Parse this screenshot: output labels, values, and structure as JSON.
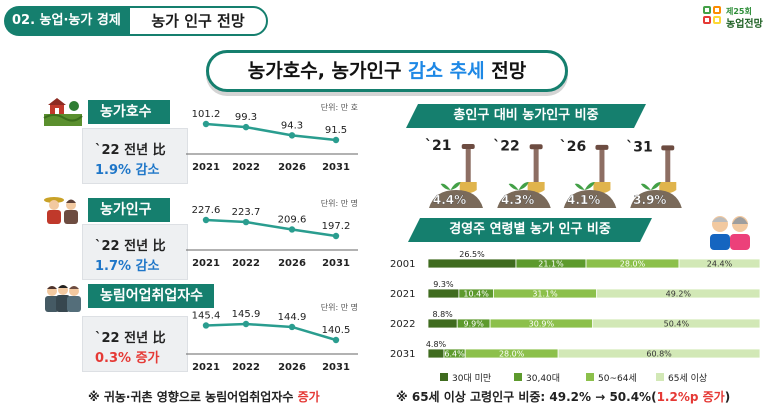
{
  "header": {
    "section_tag": "02. 농업·농가 경제 전망",
    "section_title": "농가 인구 전망",
    "logo_line1": "제25회",
    "logo_line2": "농업전망"
  },
  "main_title": {
    "part1": "농가호수, 농가인구 ",
    "highlight": "감소 추세",
    "part2": " 전망"
  },
  "left": {
    "households": {
      "label": "농가호수",
      "comp_line": "`22 전년 比",
      "change": "1.9% 감소",
      "unit": "단위: 만 호"
    },
    "population": {
      "label": "농가인구",
      "comp_line": "`22 전년 比",
      "change": "1.7% 감소",
      "unit": "단위: 만 명"
    },
    "workers": {
      "label": "농림어업취업자수",
      "comp_line": "`22 전년 比",
      "change": "0.3% 증가",
      "unit": "단위: 만 명"
    },
    "footnote_prefix": "※ 귀농·귀촌 영향으로 농림어업취업자수 ",
    "footnote_highlight": "증가"
  },
  "right": {
    "share_title": "총인구 대비 농가인구 비중",
    "age_title": "경영주 연령별 농가 인구 비중",
    "footnote_prefix": "※ 65세 이상 고령인구 비중: 49.2% → 50.4%(",
    "footnote_highlight": "1.2%p 증가",
    "footnote_suffix": ")"
  },
  "colors": {
    "primary": "#157f6e",
    "accent_blue": "#1e76c8",
    "accent_red": "#e53935",
    "line": "#2a9d8f"
  },
  "chart_data": [
    {
      "type": "line",
      "name": "households",
      "x": [
        "2021",
        "2022",
        "2026",
        "2031"
      ],
      "values": [
        101.2,
        99.3,
        94.3,
        91.5
      ],
      "labels": [
        "101.2",
        "99.3",
        "94.3",
        "91.5"
      ],
      "unit": "단위: 만 호"
    },
    {
      "type": "line",
      "name": "population",
      "x": [
        "2021",
        "2022",
        "2026",
        "2031"
      ],
      "values": [
        227.6,
        223.7,
        209.6,
        197.2
      ],
      "labels": [
        "227.6",
        "223.7",
        "209.6",
        "197.2"
      ],
      "unit": "단위: 만 명"
    },
    {
      "type": "line",
      "name": "workers",
      "x": [
        "2021",
        "2022",
        "2026",
        "2031"
      ],
      "values": [
        145.4,
        145.9,
        144.9,
        140.5
      ],
      "labels": [
        "145.4",
        "145.9",
        "144.9",
        "140.5"
      ],
      "unit": "단위: 만 명"
    },
    {
      "type": "bar",
      "name": "share",
      "categories": [
        "`21",
        "`22",
        "`26",
        "`31"
      ],
      "values": [
        4.4,
        4.3,
        4.1,
        3.9
      ],
      "labels": [
        "4.4%",
        "4.3%",
        "4.1%",
        "3.9%"
      ]
    },
    {
      "type": "bar",
      "name": "age-stacked",
      "orientation": "horizontal",
      "stacked": true,
      "categories": [
        "2001",
        "2021",
        "2022",
        "2031"
      ],
      "series": [
        {
          "name": "30대 미만",
          "color": "#3f6b1f",
          "values": [
            26.5,
            9.3,
            8.8,
            4.8
          ],
          "labels": [
            "26.5%",
            "9.3%",
            "8.8%",
            "4.8%"
          ]
        },
        {
          "name": "30,40대",
          "color": "#5d9a2d",
          "values": [
            21.1,
            10.4,
            9.9,
            6.4
          ],
          "labels": [
            "21.1%",
            "10.4%",
            "9.9%",
            "6.4%"
          ]
        },
        {
          "name": "50~64세",
          "color": "#8cc04b",
          "values": [
            28.0,
            31.1,
            30.9,
            28.0
          ],
          "labels": [
            "28.0%",
            "31.1%",
            "30.9%",
            "28.0%"
          ]
        },
        {
          "name": "65세 이상",
          "color": "#d2e8b6",
          "values": [
            24.4,
            49.2,
            50.4,
            60.8
          ],
          "labels": [
            "24.4%",
            "49.2%",
            "50.4%",
            "60.8%"
          ]
        }
      ],
      "legend_position": "bottom"
    }
  ]
}
